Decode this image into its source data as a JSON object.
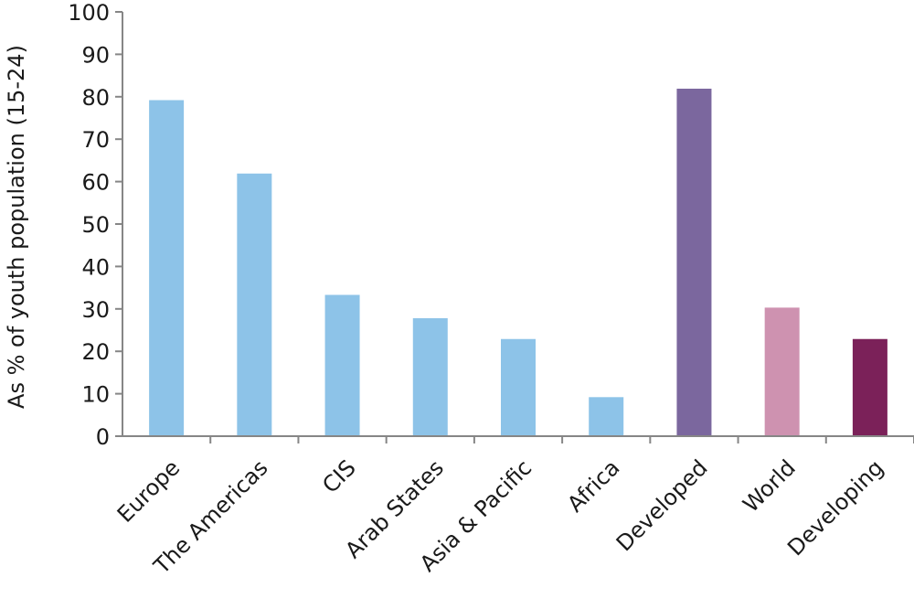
{
  "chart_data": {
    "type": "bar",
    "title": "",
    "xlabel": "",
    "ylabel": "As % of youth population (15-24)",
    "ylim": [
      0,
      100
    ],
    "yticks": [
      0,
      10,
      20,
      30,
      40,
      50,
      60,
      70,
      80,
      90,
      100
    ],
    "categories": [
      "Europe",
      "The Americas",
      "CIS",
      "Arab States",
      "Asia & Pacific",
      "Africa",
      "Developed",
      "World",
      "Developing"
    ],
    "values": [
      79.2,
      61.9,
      33.3,
      27.8,
      22.9,
      9.2,
      81.9,
      30.3,
      22.9
    ],
    "colors": [
      "#8dc3e8",
      "#8dc3e8",
      "#8dc3e8",
      "#8dc3e8",
      "#8dc3e8",
      "#8dc3e8",
      "#7b679e",
      "#ce92b0",
      "#7b2159"
    ],
    "grid": false,
    "legend": "none"
  }
}
